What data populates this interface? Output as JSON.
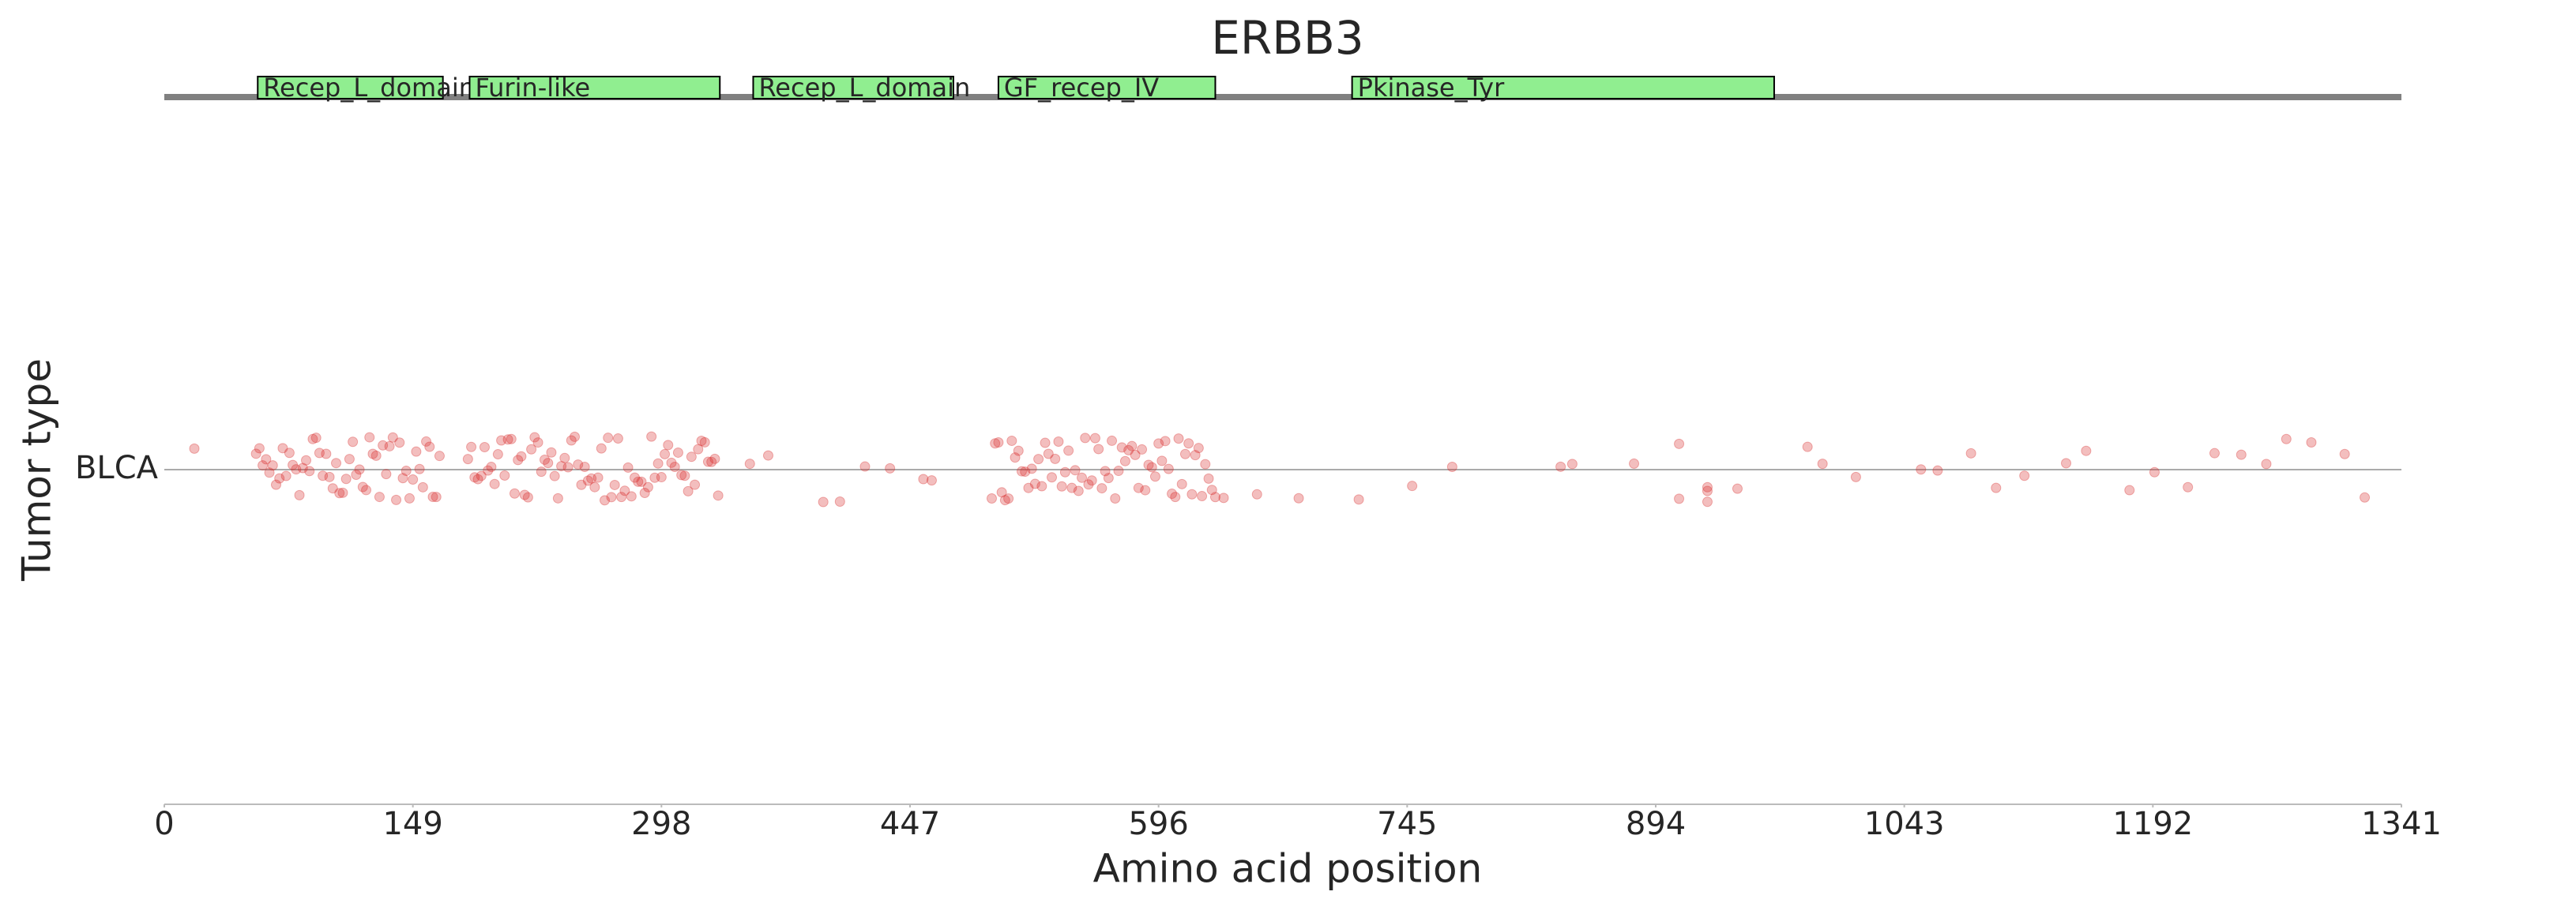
{
  "chart_data": {
    "type": "strip",
    "title": "ERBB3",
    "x_label": "Amino acid position",
    "y_label": "Tumor type",
    "categories": [
      "BLCA"
    ],
    "xlim": [
      0,
      1341
    ],
    "xticks": [
      0,
      149,
      298,
      447,
      596,
      745,
      894,
      1043,
      1192,
      1341
    ],
    "point_color": "#d62728",
    "domain_color": "#90ee90",
    "domains": [
      {
        "name": "Recep_L_domain",
        "start": 56,
        "end": 167
      },
      {
        "name": "Furin-like",
        "start": 183,
        "end": 333
      },
      {
        "name": "Recep_L_domain",
        "start": 353,
        "end": 473
      },
      {
        "name": "GF_recep_IV",
        "start": 500,
        "end": 630
      },
      {
        "name": "Pkinase_Tyr",
        "start": 712,
        "end": 965
      }
    ],
    "x": [
      18,
      55,
      59,
      63,
      67,
      71,
      75,
      79,
      83,
      87,
      91,
      95,
      99,
      103,
      107,
      111,
      115,
      119,
      123,
      127,
      131,
      135,
      139,
      143,
      147,
      151,
      155,
      159,
      163,
      57,
      61,
      65,
      69,
      73,
      77,
      81,
      85,
      89,
      93,
      97,
      101,
      105,
      109,
      113,
      117,
      121,
      125,
      129,
      133,
      137,
      141,
      145,
      149,
      153,
      157,
      161,
      165,
      182,
      186,
      190,
      194,
      198,
      202,
      206,
      210,
      214,
      218,
      222,
      226,
      230,
      234,
      238,
      242,
      246,
      250,
      254,
      258,
      262,
      266,
      270,
      274,
      278,
      282,
      286,
      290,
      294,
      298,
      302,
      306,
      310,
      314,
      318,
      322,
      326,
      330,
      184,
      188,
      192,
      196,
      200,
      204,
      208,
      212,
      216,
      220,
      224,
      228,
      232,
      236,
      240,
      244,
      248,
      252,
      256,
      260,
      264,
      268,
      272,
      276,
      280,
      284,
      288,
      292,
      296,
      300,
      304,
      308,
      312,
      316,
      320,
      324,
      328,
      332,
      351,
      362,
      395,
      405,
      420,
      435,
      455,
      460,
      496,
      500,
      504,
      508,
      512,
      516,
      520,
      524,
      528,
      532,
      536,
      540,
      544,
      548,
      552,
      556,
      560,
      564,
      568,
      572,
      576,
      580,
      584,
      588,
      592,
      596,
      600,
      604,
      608,
      612,
      616,
      620,
      624,
      628,
      498,
      502,
      506,
      510,
      514,
      518,
      522,
      526,
      530,
      534,
      538,
      542,
      546,
      550,
      554,
      558,
      562,
      566,
      570,
      574,
      578,
      582,
      586,
      590,
      594,
      598,
      602,
      606,
      610,
      614,
      618,
      622,
      626,
      630,
      635,
      655,
      680,
      716,
      748,
      772,
      837,
      844,
      881,
      908,
      908,
      925,
      925,
      925,
      943,
      985,
      994,
      1014,
      1053,
      1063,
      1083,
      1098,
      1115,
      1140,
      1152,
      1178,
      1193,
      1213,
      1229,
      1245,
      1260,
      1272,
      1287,
      1307,
      1319
    ]
  }
}
